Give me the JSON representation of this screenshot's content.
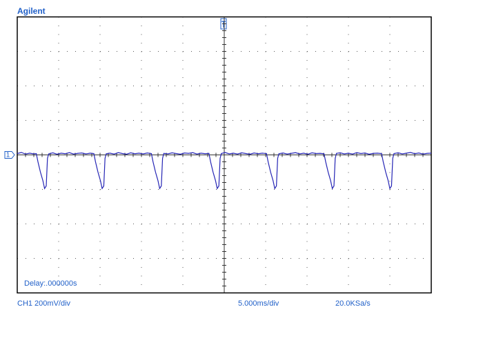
{
  "chart_data": {
    "type": "line",
    "brand": "Agilent",
    "delay": "Delay:.000000s",
    "channel_scale": "CH1 200mV/div",
    "time_scale": "5.000ms/div",
    "sample_rate": "20.0KSa/s",
    "channel_marker": "1",
    "xlim": [
      0,
      50
    ],
    "ylim": [
      -800,
      800
    ],
    "xticks": [
      0,
      5,
      10,
      15,
      20,
      25,
      30,
      35,
      40,
      45,
      50
    ],
    "yticks": [
      -800,
      -600,
      -400,
      -200,
      0,
      200,
      400,
      600,
      800
    ],
    "grid": true,
    "series": [
      {
        "color": "#2323b4",
        "x": [
          0,
          0.5,
          1.0,
          1.5,
          2.0,
          2.3,
          2.5,
          2.8,
          3.1,
          3.3,
          3.5,
          3.65,
          3.8,
          4.3,
          4.8,
          5.3,
          5.8,
          6.3,
          6.8,
          7.3,
          7.8,
          8.3,
          8.8,
          9.25,
          9.45,
          9.75,
          10.05,
          10.25,
          10.45,
          10.6,
          10.75,
          11.2,
          11.7,
          12.2,
          12.7,
          13.2,
          13.7,
          14.2,
          14.7,
          15.2,
          15.7,
          16.2,
          16.4,
          16.7,
          17.0,
          17.2,
          17.4,
          17.55,
          17.7,
          18.2,
          18.7,
          19.2,
          19.7,
          20.2,
          20.7,
          21.2,
          21.7,
          22.2,
          22.7,
          23.15,
          23.35,
          23.65,
          23.95,
          24.15,
          24.35,
          24.5,
          24.65,
          25.1,
          25.6,
          26.1,
          26.6,
          27.1,
          27.6,
          28.1,
          28.6,
          29.1,
          29.6,
          30.1,
          30.3,
          30.6,
          30.9,
          31.1,
          31.3,
          31.45,
          31.6,
          32.1,
          32.6,
          33.1,
          33.6,
          34.1,
          34.6,
          35.1,
          35.6,
          36.1,
          36.6,
          37.05,
          37.25,
          37.55,
          37.85,
          38.05,
          38.25,
          38.4,
          38.55,
          39.0,
          39.5,
          40.0,
          40.5,
          41.0,
          41.5,
          42.0,
          42.5,
          43.0,
          43.5,
          44.0,
          44.2,
          44.5,
          44.8,
          45.0,
          45.2,
          45.35,
          45.5,
          46.0,
          46.5,
          47.0,
          47.5,
          48.0,
          48.5,
          49.0,
          49.5,
          50.0
        ],
        "values": [
          8,
          14,
          5,
          10,
          6,
          8,
          -40,
          -100,
          -150,
          -195,
          -180,
          -20,
          6,
          12,
          4,
          10,
          7,
          13,
          5,
          9,
          11,
          6,
          10,
          8,
          -40,
          -100,
          -150,
          -195,
          -180,
          -20,
          7,
          10,
          5,
          13,
          8,
          4,
          12,
          7,
          10,
          6,
          11,
          8,
          -40,
          -100,
          -150,
          -195,
          -180,
          -20,
          9,
          6,
          12,
          8,
          4,
          11,
          9,
          13,
          5,
          10,
          7,
          9,
          -40,
          -100,
          -150,
          -195,
          -180,
          -20,
          8,
          14,
          6,
          10,
          5,
          12,
          8,
          4,
          11,
          7,
          10,
          8,
          -40,
          -100,
          -150,
          -195,
          -180,
          -20,
          7,
          11,
          5,
          9,
          13,
          6,
          10,
          4,
          12,
          8,
          9,
          7,
          -40,
          -100,
          -150,
          -195,
          -180,
          -20,
          9,
          12,
          6,
          10,
          5,
          13,
          8,
          11,
          4,
          9,
          10,
          8,
          -40,
          -100,
          -150,
          -195,
          -180,
          -20,
          8,
          12,
          6,
          10,
          14,
          7,
          11,
          5,
          9,
          10
        ]
      }
    ]
  }
}
